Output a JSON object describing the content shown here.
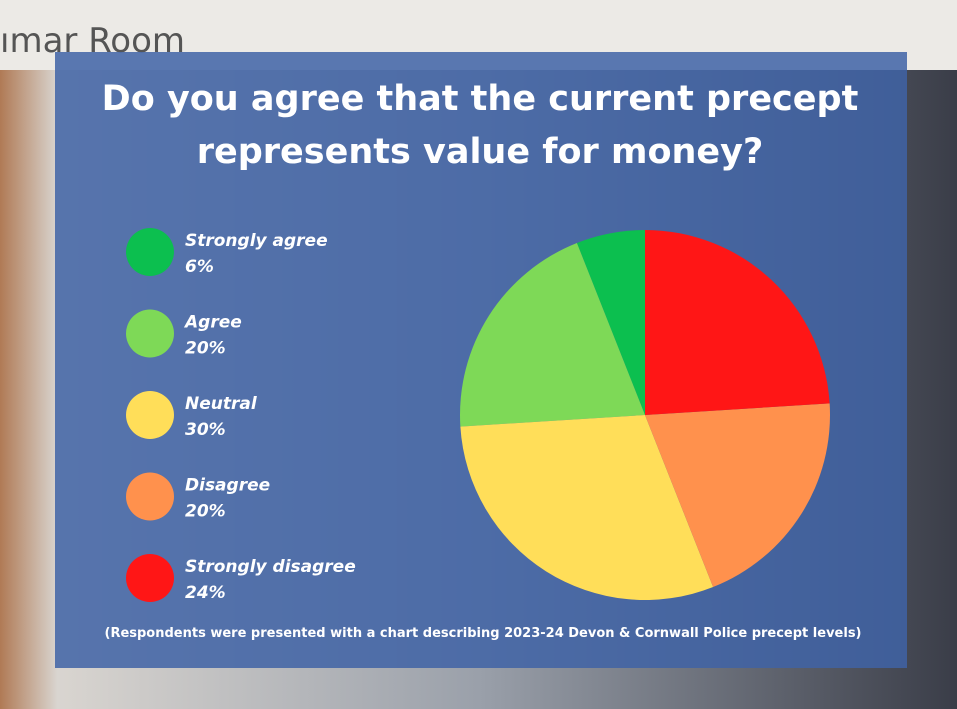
{
  "sign": "ımar Room",
  "chart_data": {
    "type": "pie",
    "title": [
      "Do you agree that the current precept",
      "represents value for money?"
    ],
    "categories": [
      "Strongly agree",
      "Agree",
      "Neutral",
      "Disagree",
      "Strongly disagree"
    ],
    "values": [
      6,
      20,
      30,
      20,
      24
    ],
    "value_labels": [
      "6%",
      "20%",
      "30%",
      "20%",
      "24%"
    ],
    "colors": [
      "#0cbf4f",
      "#7ed957",
      "#ffde59",
      "#ff914d",
      "#ff1616"
    ],
    "legend": "left",
    "footnote": "(Respondents were presented with a chart describing 2023-24 Devon & Cornwall Police precept levels)"
  }
}
